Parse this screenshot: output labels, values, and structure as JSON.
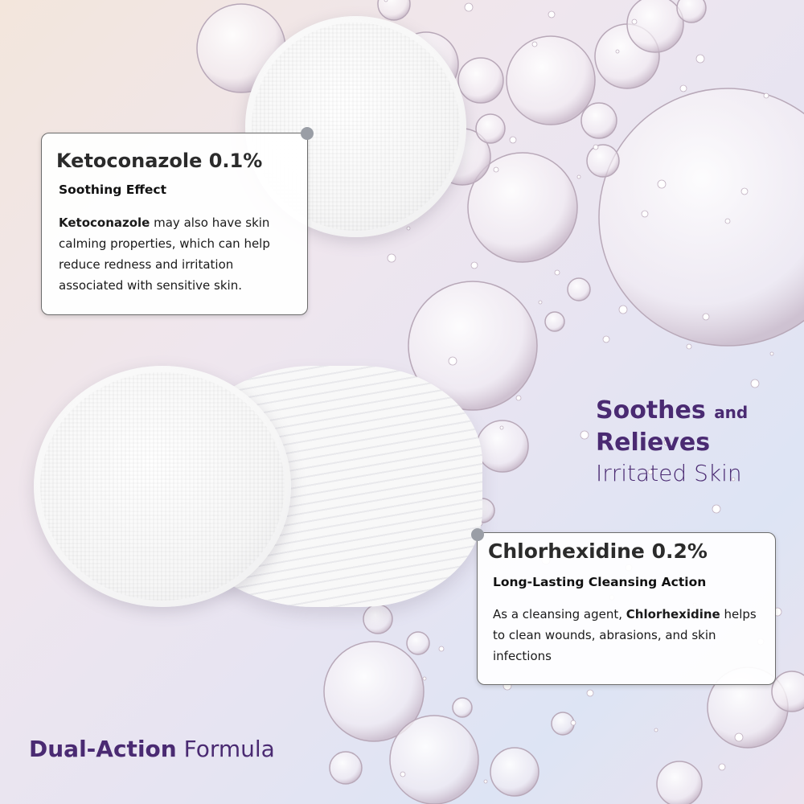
{
  "colors": {
    "accent_purple": "#4a2a72",
    "card_border": "#6c6c6c",
    "pin": "#9a9ea6"
  },
  "card_ketoconazole": {
    "title": "Ketoconazole 0.1%",
    "subtitle": "Soothing Effect",
    "body_bold": "Ketoconazole",
    "body_rest": " may also have skin calming properties, which can help reduce redness and irritation associated with sensitive skin."
  },
  "card_chlorhexidine": {
    "title": "Chlorhexidine 0.2%",
    "subtitle": "Long-Lasting Cleansing Action",
    "body_start": "As a cleansing agent, ",
    "body_bold": "Chlorhexidine",
    "body_rest": " helps to clean wounds, abrasions, and skin infections"
  },
  "tagline": {
    "line1_bold": "Soothes",
    "line1_small": "and",
    "line2_bold": "Relieves",
    "line3": "Irritated Skin"
  },
  "footer": {
    "bold": "Dual-Action",
    "regular": "Formula"
  }
}
